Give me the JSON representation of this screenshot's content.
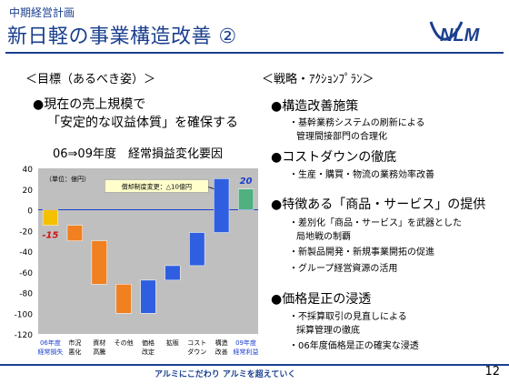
{
  "header": {
    "subtitle": "中期経営計画",
    "title": "新日軽の事業構造改善 ②",
    "logo_text": "NLM"
  },
  "left": {
    "heading": "＜目標（あるべき姿）＞",
    "bullet": "●現在の売上規模で",
    "bullet_cont": "「安定的な収益体質」を確保する",
    "chart_title": "06⇒09年度　経常損益変化要因"
  },
  "right": {
    "heading": "＜戦略・ｱｸｼｮﾝﾌﾟﾗﾝ＞",
    "items": [
      {
        "title": "●構造改善施策",
        "subs": [
          "・基幹業務システムの刷新による",
          "管理間接部門の合理化"
        ]
      },
      {
        "title": "●コストダウンの徹底",
        "subs": [
          "・生産・購買・物流の業務効率改善"
        ]
      },
      {
        "title": "●特徴ある「商品・サービス」の提供",
        "subs": [
          "・差別化「商品・サービス」を武器とした",
          "局地戦の制覇",
          "・新製品開発・新規事業開拓の促進",
          "・グループ経営資源の活用"
        ]
      },
      {
        "title": "●価格是正の浸透",
        "subs": [
          "・不採算取引の見直しによる",
          "採算管理の徹底",
          "・06年度価格是正の確実な浸透"
        ]
      }
    ]
  },
  "chart_data": {
    "type": "bar",
    "unit_label": "（単位：億円）",
    "ylim": [
      -120,
      40
    ],
    "yticks": [
      40,
      20,
      0,
      -20,
      -40,
      -60,
      -80,
      -100,
      -120
    ],
    "annotation": "償却制度変更：△10億円",
    "colors": {
      "start": "#f5c000",
      "up": "#2f5fe0",
      "down": "#f08020",
      "end": "#50b080"
    },
    "bars": [
      {
        "label": [
          "06年度",
          "経常損失"
        ],
        "from": 0,
        "to": -15,
        "kind": "start",
        "value_label": "-15"
      },
      {
        "label": [
          "市況",
          "悪化"
        ],
        "from": -15,
        "to": -30,
        "kind": "down"
      },
      {
        "label": [
          "資材",
          "高騰"
        ],
        "from": -30,
        "to": -72,
        "kind": "down"
      },
      {
        "label": [
          "その他"
        ],
        "from": -72,
        "to": -100,
        "kind": "down"
      },
      {
        "label": [
          "価格",
          "改定"
        ],
        "from": -100,
        "to": -68,
        "kind": "up"
      },
      {
        "label": [
          "拡販"
        ],
        "from": -68,
        "to": -54,
        "kind": "up"
      },
      {
        "label": [
          "コスト",
          "ダウン"
        ],
        "from": -54,
        "to": -22,
        "kind": "up"
      },
      {
        "label": [
          "構造",
          "改善"
        ],
        "from": -22,
        "to": 30,
        "kind": "up"
      },
      {
        "label": [
          "09年度",
          "経常利益"
        ],
        "from": 0,
        "to": 20,
        "kind": "end",
        "value_label": "20"
      }
    ]
  },
  "footer": {
    "text": "アルミにこだわり アルミを超えていく",
    "page": "12"
  }
}
